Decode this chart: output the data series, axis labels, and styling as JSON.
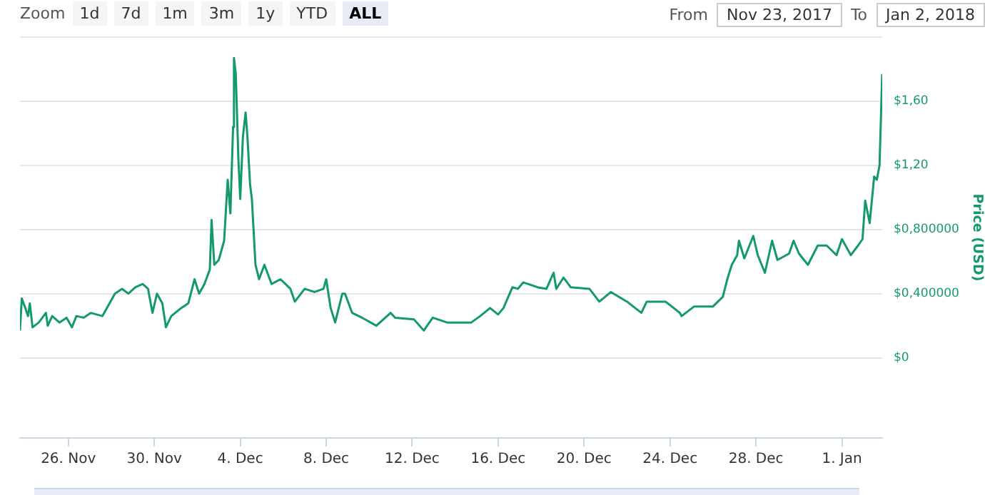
{
  "chart_data": {
    "type": "line",
    "ylabel": "Price (USD)",
    "annotations": [
      "Zoom",
      "1d",
      "7d",
      "1m",
      "3m",
      "1y",
      "YTD",
      "ALL",
      "From",
      "Nov 23, 2017",
      "To",
      "Jan 2, 2018"
    ],
    "x": [
      "2017-11-23T18:00",
      "2017-11-23T20:00",
      "2017-11-24T00:00",
      "2017-11-24T03:00",
      "2017-11-24T05:00",
      "2017-11-24T08:00",
      "2017-11-24T15:00",
      "2017-11-24T23:00",
      "2017-11-25T01:00",
      "2017-11-25T06:00",
      "2017-11-25T14:00",
      "2017-11-25T22:00",
      "2017-11-26T04:00",
      "2017-11-26T09:00",
      "2017-11-26T17:00",
      "2017-11-27T01:00",
      "2017-11-27T14:00",
      "2017-11-27T20:00",
      "2017-11-28T04:00",
      "2017-11-28T12:00",
      "2017-11-28T19:00",
      "2017-11-29T03:00",
      "2017-11-29T11:00",
      "2017-11-29T17:00",
      "2017-11-29T22:00",
      "2017-11-30T03:00",
      "2017-11-30T09:00",
      "2017-11-30T13:00",
      "2017-11-30T19:00",
      "2017-12-01T06:00",
      "2017-12-01T14:00",
      "2017-12-01T21:00",
      "2017-12-02T02:00",
      "2017-12-02T08:00",
      "2017-12-02T14:00",
      "2017-12-02T16:00",
      "2017-12-02T19:00",
      "2017-12-03T00:00",
      "2017-12-03T06:00",
      "2017-12-03T10:00",
      "2017-12-03T13:00",
      "2017-12-03T16:00",
      "2017-12-03T17:00",
      "2017-12-03T19:00",
      "2017-12-03T22:00",
      "2017-12-04T00:00",
      "2017-12-04T03:00",
      "2017-12-04T06:00",
      "2017-12-04T08:00",
      "2017-12-04T11:00",
      "2017-12-04T13:00",
      "2017-12-04T17:00",
      "2017-12-04T21:00",
      "2017-12-05T03:00",
      "2017-12-05T11:00",
      "2017-12-05T21:00",
      "2017-12-06T08:00",
      "2017-12-06T13:00",
      "2017-12-07T00:00",
      "2017-12-07T11:00",
      "2017-12-07T21:00",
      "2017-12-08T00:00",
      "2017-12-08T05:00",
      "2017-12-08T10:00",
      "2017-12-08T18:00",
      "2017-12-08T21:00",
      "2017-12-09T05:00",
      "2017-12-09T16:00",
      "2017-12-10T08:00",
      "2017-12-11T00:00",
      "2017-12-11T05:00",
      "2017-12-12T02:00",
      "2017-12-12T13:00",
      "2017-12-12T23:00",
      "2017-12-13T15:00",
      "2017-12-14T18:00",
      "2017-12-15T04:00",
      "2017-12-15T15:00",
      "2017-12-16T00:00",
      "2017-12-16T06:00",
      "2017-12-16T16:00",
      "2017-12-16T22:00",
      "2017-12-17T04:00",
      "2017-12-17T20:00",
      "2017-12-18T06:00",
      "2017-12-18T14:00",
      "2017-12-18T17:00",
      "2017-12-19T01:00",
      "2017-12-19T09:00",
      "2017-12-20T06:00",
      "2017-12-20T17:00",
      "2017-12-21T06:00",
      "2017-12-22T00:00",
      "2017-12-22T16:00",
      "2017-12-22T22:00",
      "2017-12-23T19:00",
      "2017-12-24T11:00",
      "2017-12-24T13:00",
      "2017-12-25T03:00",
      "2017-12-26T00:00",
      "2017-12-26T11:00",
      "2017-12-26T16:00",
      "2017-12-26T21:00",
      "2017-12-27T03:00",
      "2017-12-27T05:00",
      "2017-12-27T11:00",
      "2017-12-27T21:00",
      "2017-12-28T02:00",
      "2017-12-28T10:00",
      "2017-12-28T18:00",
      "2017-12-29T00:00",
      "2017-12-29T13:00",
      "2017-12-29T18:00",
      "2017-12-30T00:00",
      "2017-12-30T10:00",
      "2017-12-30T21:00",
      "2017-12-31T07:00",
      "2017-12-31T18:00",
      "2018-01-01T00:00",
      "2018-01-01T10:00",
      "2018-01-01T18:00",
      "2018-01-01T23:00",
      "2018-01-02T02:00",
      "2018-01-02T07:00",
      "2018-01-02T12:00",
      "2018-01-02T15:00",
      "2018-01-02T18:00",
      "2018-01-02T21:00"
    ],
    "series": [
      {
        "color": "#13996b",
        "values": [
          0.17,
          0.37,
          0.31,
          0.26,
          0.34,
          0.19,
          0.22,
          0.28,
          0.2,
          0.26,
          0.22,
          0.25,
          0.19,
          0.26,
          0.25,
          0.28,
          0.26,
          0.32,
          0.4,
          0.43,
          0.4,
          0.44,
          0.46,
          0.43,
          0.28,
          0.4,
          0.34,
          0.19,
          0.26,
          0.31,
          0.34,
          0.49,
          0.4,
          0.46,
          0.55,
          0.86,
          0.58,
          0.61,
          0.73,
          1.11,
          0.9,
          1.44,
          1.87,
          1.77,
          1.23,
          0.99,
          1.38,
          1.53,
          1.38,
          1.08,
          0.99,
          0.58,
          0.49,
          0.58,
          0.46,
          0.49,
          0.43,
          0.35,
          0.43,
          0.41,
          0.43,
          0.49,
          0.31,
          0.22,
          0.4,
          0.4,
          0.28,
          0.25,
          0.2,
          0.28,
          0.25,
          0.24,
          0.17,
          0.25,
          0.22,
          0.22,
          0.26,
          0.31,
          0.27,
          0.31,
          0.44,
          0.43,
          0.47,
          0.44,
          0.43,
          0.53,
          0.43,
          0.5,
          0.44,
          0.43,
          0.35,
          0.41,
          0.35,
          0.28,
          0.35,
          0.35,
          0.28,
          0.26,
          0.32,
          0.32,
          0.38,
          0.49,
          0.58,
          0.64,
          0.73,
          0.62,
          0.76,
          0.64,
          0.53,
          0.73,
          0.61,
          0.65,
          0.73,
          0.65,
          0.58,
          0.7,
          0.7,
          0.64,
          0.74,
          0.64,
          0.7,
          0.74,
          0.98,
          0.84,
          1.13,
          1.11,
          1.2,
          1.77
        ]
      }
    ],
    "xlim": [
      "2017-11-23T18:00",
      "2018-01-02T21:00"
    ],
    "xticks": [
      {
        "value": "2017-11-26",
        "label": "26. Nov"
      },
      {
        "value": "2017-11-30",
        "label": "30. Nov"
      },
      {
        "value": "2017-12-04",
        "label": "4. Dec"
      },
      {
        "value": "2017-12-08",
        "label": "8. Dec"
      },
      {
        "value": "2017-12-12",
        "label": "12. Dec"
      },
      {
        "value": "2017-12-16",
        "label": "16. Dec"
      },
      {
        "value": "2017-12-20",
        "label": "20. Dec"
      },
      {
        "value": "2017-12-24",
        "label": "24. Dec"
      },
      {
        "value": "2017-12-28",
        "label": "28. Dec"
      },
      {
        "value": "2018-01-01",
        "label": "1. Jan"
      }
    ],
    "ylim": [
      -0.5,
      2.0
    ],
    "yticks": [
      {
        "value": 0,
        "label": "$0"
      },
      {
        "value": 0.4,
        "label": "$0,400000"
      },
      {
        "value": 0.8,
        "label": "$0,800000"
      },
      {
        "value": 1.2,
        "label": "$1,20"
      },
      {
        "value": 1.6,
        "label": "$1,60"
      },
      {
        "value": 2.0,
        "label": null
      }
    ],
    "grid": "y",
    "legend": false,
    "marker": "none",
    "line_style": "solid"
  }
}
